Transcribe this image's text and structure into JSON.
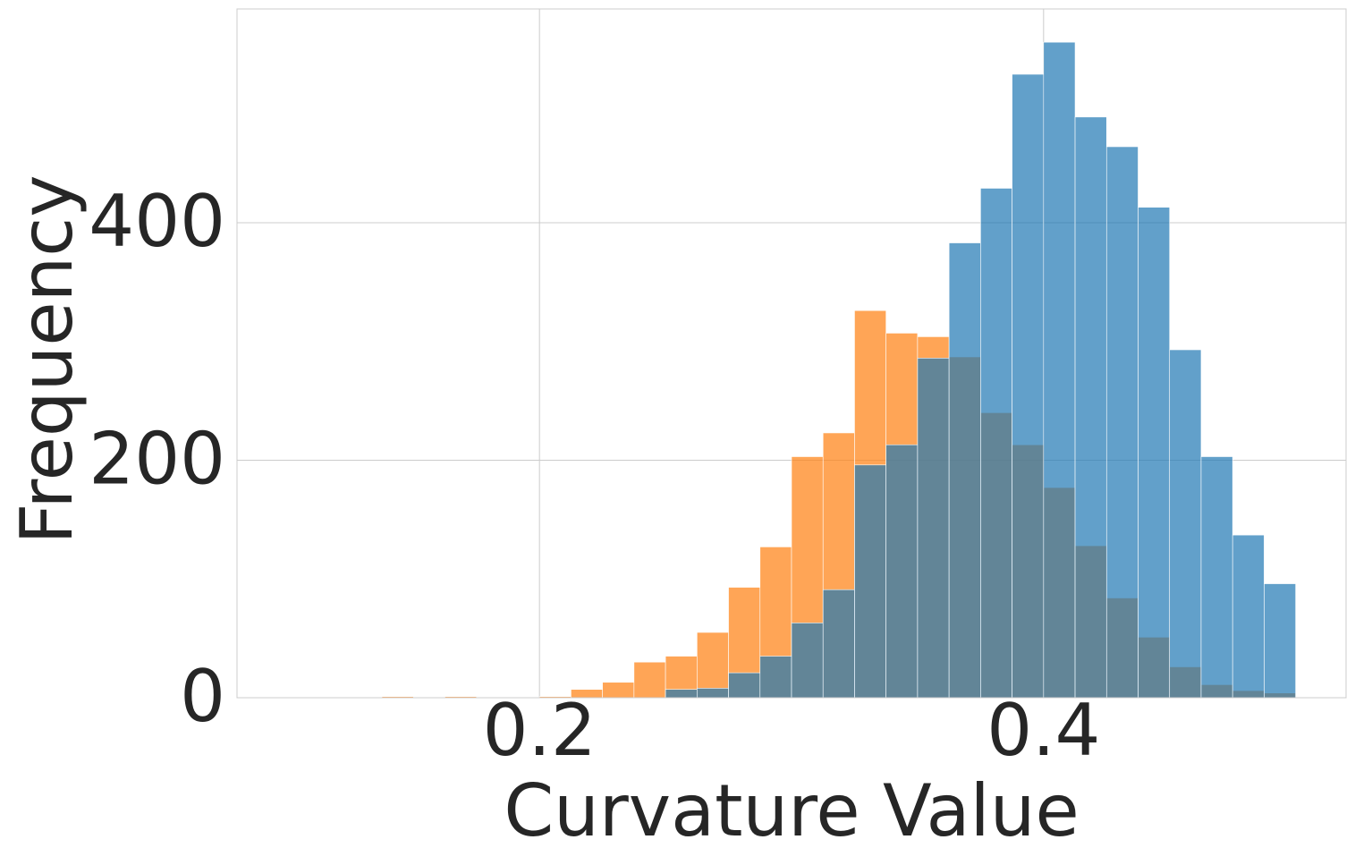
{
  "chart_data": {
    "type": "histogram",
    "xlabel": "Curvature Value",
    "ylabel": "Frequency",
    "xlim": [
      0.08,
      0.52
    ],
    "ylim": [
      0,
      580
    ],
    "xticks": [
      0.2,
      0.4
    ],
    "yticks": [
      0,
      200,
      400
    ],
    "grid": true,
    "series": [
      {
        "color": "#ff7f0e",
        "bins": [
          0.1375,
          0.15,
          0.1625,
          0.175,
          0.1875,
          0.2,
          0.2125,
          0.225,
          0.2375,
          0.25,
          0.2625,
          0.275,
          0.2875,
          0.3,
          0.3125,
          0.325,
          0.3375,
          0.35,
          0.3625,
          0.375,
          0.3875,
          0.4,
          0.4125,
          0.425,
          0.4375,
          0.45,
          0.4625,
          0.475,
          0.4875,
          0.5
        ],
        "values": [
          1,
          0,
          1,
          0,
          0,
          1,
          7,
          13,
          30,
          35,
          55,
          93,
          127,
          203,
          223,
          326,
          307,
          304,
          287,
          240,
          213,
          177,
          128,
          84,
          51,
          26,
          11,
          6,
          4
        ]
      },
      {
        "color": "#1f77b4",
        "bins": [
          0.25,
          0.2625,
          0.275,
          0.2875,
          0.3,
          0.3125,
          0.325,
          0.3375,
          0.35,
          0.3625,
          0.375,
          0.3875,
          0.4,
          0.4125,
          0.425,
          0.4375,
          0.45,
          0.4625,
          0.475,
          0.4875,
          0.5
        ],
        "values": [
          7,
          8,
          21,
          35,
          63,
          91,
          196,
          213,
          286,
          383,
          429,
          525,
          552,
          489,
          464,
          413,
          293,
          203,
          137,
          96
        ]
      }
    ]
  }
}
